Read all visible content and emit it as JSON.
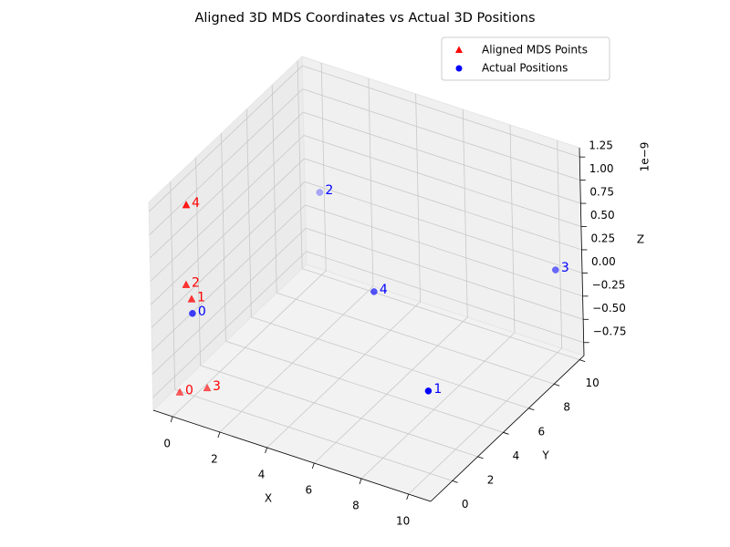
{
  "chart_data": {
    "type": "scatter3d",
    "title": "Aligned 3D MDS Coordinates vs Actual 3D Positions",
    "xlabel": "X",
    "ylabel": "Y",
    "zlabel": "Z",
    "z_offset_label": "1e−9",
    "legend": "upper right",
    "grid": true,
    "xlim": [
      -0.82,
      10.94
    ],
    "ylim": [
      -1.7,
      10.35
    ],
    "zlim": [
      -0.89,
      1.35
    ],
    "xticks": [
      0,
      2,
      4,
      6,
      8,
      10
    ],
    "yticks": [
      0,
      2,
      4,
      6,
      8,
      10
    ],
    "zticks": [
      {
        "value": -0.75,
        "label": "−0.75"
      },
      {
        "value": -0.5,
        "label": "−0.50"
      },
      {
        "value": -0.25,
        "label": "−0.25"
      },
      {
        "value": 0,
        "label": "0.00"
      },
      {
        "value": 0.25,
        "label": "0.25"
      },
      {
        "value": 0.5,
        "label": "0.50"
      },
      {
        "value": 0.75,
        "label": "0.75"
      },
      {
        "value": 1,
        "label": "1.00"
      },
      {
        "value": 1.25,
        "label": "1.25"
      }
    ],
    "series": [
      {
        "name": "Aligned MDS Points",
        "color": "red",
        "marker": "triangle",
        "x": [
          -0.45,
          0.01,
          -0.2,
          0.43,
          -0.11
        ],
        "y": [
          -0.3,
          -0.06,
          -0.08,
          0.23,
          -0.1
        ],
        "z": [
          -0.85,
          0.16,
          0.3,
          -0.8,
          1.17
        ],
        "point_labels": [
          "0",
          "1",
          "2",
          "3",
          "4"
        ]
      },
      {
        "name": "Actual Positions",
        "color": "blue",
        "marker": "circle",
        "x": [
          0,
          10,
          0,
          10,
          5
        ],
        "y": [
          0,
          0,
          10,
          10,
          5
        ],
        "z": [
          0,
          0,
          0,
          0,
          0
        ],
        "point_labels": [
          "0",
          "1",
          "2",
          "3",
          "4"
        ]
      }
    ]
  }
}
